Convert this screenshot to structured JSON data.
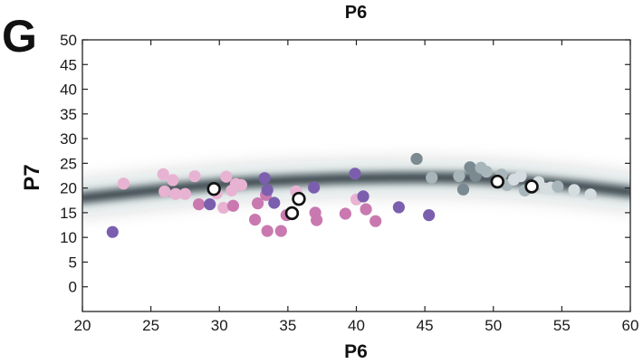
{
  "panel_label": "G",
  "chart_data": {
    "type": "scatter",
    "title": "P6",
    "xlabel": "P6",
    "ylabel": "P7",
    "xlim": [
      20,
      60
    ],
    "ylim": [
      -5,
      50
    ],
    "xticks": [
      20,
      25,
      30,
      35,
      40,
      45,
      50,
      55,
      60
    ],
    "yticks": [
      0,
      5,
      10,
      15,
      20,
      25,
      30,
      35,
      40,
      45,
      50
    ],
    "grid": false,
    "legend": "none",
    "density_ridge": {
      "color": "#1c2a33",
      "centerline": [
        [
          20,
          18.0
        ],
        [
          25,
          19.5
        ],
        [
          30,
          20.8
        ],
        [
          35,
          21.6
        ],
        [
          40,
          22.0
        ],
        [
          45,
          22.2
        ],
        [
          50,
          21.9
        ],
        [
          55,
          20.8
        ],
        [
          60,
          19.2
        ]
      ]
    },
    "points": [
      {
        "x": 22.2,
        "y": 11.1,
        "color": "#7b5fae"
      },
      {
        "x": 23.0,
        "y": 20.9,
        "color": "#e8b3d2"
      },
      {
        "x": 25.9,
        "y": 22.8,
        "color": "#e8b3d2"
      },
      {
        "x": 26.0,
        "y": 19.3,
        "color": "#e8b3d2"
      },
      {
        "x": 26.6,
        "y": 21.6,
        "color": "#e8b3d2"
      },
      {
        "x": 26.8,
        "y": 18.8,
        "color": "#e8b3d2"
      },
      {
        "x": 27.5,
        "y": 18.8,
        "color": "#e8b3d2"
      },
      {
        "x": 28.2,
        "y": 22.4,
        "color": "#e8b3d2"
      },
      {
        "x": 28.5,
        "y": 16.7,
        "color": "#c979b0"
      },
      {
        "x": 29.3,
        "y": 16.7,
        "color": "#7b5fae"
      },
      {
        "x": 29.8,
        "y": 18.9,
        "color": "#e8b3d2"
      },
      {
        "x": 30.3,
        "y": 16.0,
        "color": "#e8b3d2"
      },
      {
        "x": 30.5,
        "y": 22.3,
        "color": "#e8b3d2"
      },
      {
        "x": 30.9,
        "y": 19.5,
        "color": "#e8b3d2"
      },
      {
        "x": 31.0,
        "y": 16.4,
        "color": "#c979b0"
      },
      {
        "x": 31.2,
        "y": 20.8,
        "color": "#e8b3d2"
      },
      {
        "x": 31.6,
        "y": 20.6,
        "color": "#e8b3d2"
      },
      {
        "x": 32.6,
        "y": 13.6,
        "color": "#c979b0"
      },
      {
        "x": 32.8,
        "y": 16.9,
        "color": "#c979b0"
      },
      {
        "x": 33.3,
        "y": 22.0,
        "color": "#7b5fae"
      },
      {
        "x": 33.4,
        "y": 18.6,
        "color": "#c979b0"
      },
      {
        "x": 33.5,
        "y": 19.6,
        "color": "#7b5fae"
      },
      {
        "x": 33.5,
        "y": 11.3,
        "color": "#c979b0"
      },
      {
        "x": 34.0,
        "y": 17.0,
        "color": "#7b5fae"
      },
      {
        "x": 34.5,
        "y": 11.3,
        "color": "#c979b0"
      },
      {
        "x": 34.9,
        "y": 14.5,
        "color": "#c979b0"
      },
      {
        "x": 35.6,
        "y": 19.3,
        "color": "#e8b3d2"
      },
      {
        "x": 36.9,
        "y": 20.1,
        "color": "#7b5fae"
      },
      {
        "x": 37.0,
        "y": 15.0,
        "color": "#c979b0"
      },
      {
        "x": 37.1,
        "y": 13.5,
        "color": "#c979b0"
      },
      {
        "x": 39.2,
        "y": 14.8,
        "color": "#c979b0"
      },
      {
        "x": 39.9,
        "y": 22.9,
        "color": "#7b5fae"
      },
      {
        "x": 40.0,
        "y": 17.7,
        "color": "#e8b3d2"
      },
      {
        "x": 40.5,
        "y": 18.3,
        "color": "#7b5fae"
      },
      {
        "x": 40.7,
        "y": 15.7,
        "color": "#c979b0"
      },
      {
        "x": 41.4,
        "y": 13.3,
        "color": "#c979b0"
      },
      {
        "x": 43.1,
        "y": 16.1,
        "color": "#7b5fae"
      },
      {
        "x": 44.4,
        "y": 25.9,
        "color": "#7a8a90"
      },
      {
        "x": 45.3,
        "y": 14.5,
        "color": "#7b5fae"
      },
      {
        "x": 45.5,
        "y": 22.1,
        "color": "#a8b6bb"
      },
      {
        "x": 47.5,
        "y": 22.4,
        "color": "#a8b6bb"
      },
      {
        "x": 47.8,
        "y": 19.7,
        "color": "#7a8a90"
      },
      {
        "x": 48.3,
        "y": 24.2,
        "color": "#7a8a90"
      },
      {
        "x": 48.7,
        "y": 22.4,
        "color": "#7a8a90"
      },
      {
        "x": 49.1,
        "y": 24.1,
        "color": "#a8b6bb"
      },
      {
        "x": 49.5,
        "y": 23.3,
        "color": "#a8b6bb"
      },
      {
        "x": 50.6,
        "y": 22.7,
        "color": "#a8b6bb"
      },
      {
        "x": 51.0,
        "y": 20.6,
        "color": "#a8b6bb"
      },
      {
        "x": 51.5,
        "y": 21.7,
        "color": "#d6dde0"
      },
      {
        "x": 52.0,
        "y": 22.4,
        "color": "#d6dde0"
      },
      {
        "x": 52.3,
        "y": 19.5,
        "color": "#a8b6bb"
      },
      {
        "x": 53.3,
        "y": 21.2,
        "color": "#d6dde0"
      },
      {
        "x": 53.8,
        "y": 19.9,
        "color": "#d6dde0"
      },
      {
        "x": 54.2,
        "y": 20.1,
        "color": "#d6dde0"
      },
      {
        "x": 54.7,
        "y": 20.3,
        "color": "#a8b6bb"
      },
      {
        "x": 55.9,
        "y": 19.6,
        "color": "#d6dde0"
      },
      {
        "x": 57.1,
        "y": 18.7,
        "color": "#d6dde0"
      }
    ],
    "highlighted_points": [
      {
        "x": 29.6,
        "y": 19.8
      },
      {
        "x": 35.3,
        "y": 14.9
      },
      {
        "x": 35.8,
        "y": 17.8
      },
      {
        "x": 50.3,
        "y": 21.3
      },
      {
        "x": 52.8,
        "y": 20.3
      }
    ]
  }
}
